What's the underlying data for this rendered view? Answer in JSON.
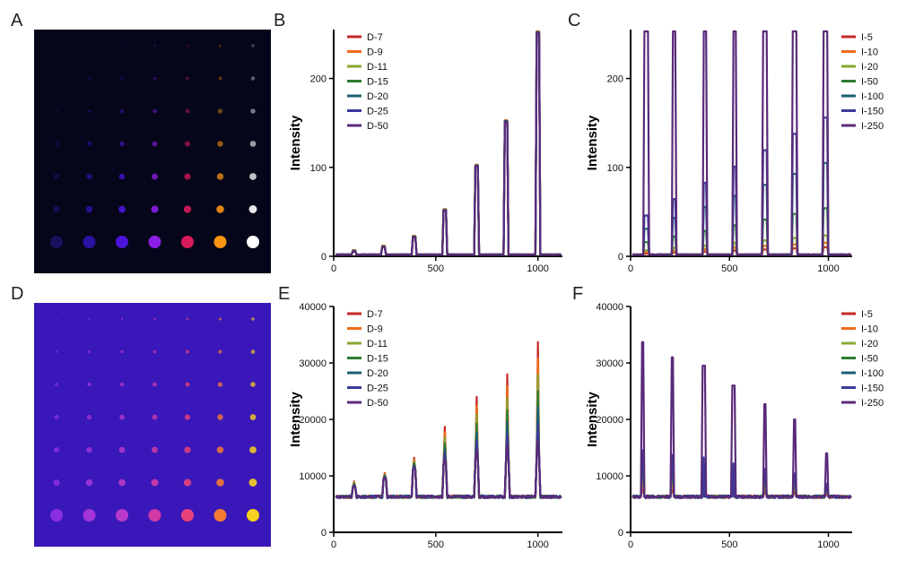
{
  "panel_labels": [
    "A",
    "B",
    "C",
    "D",
    "E",
    "F"
  ],
  "images": [
    {
      "panel": "A",
      "background": "#05061a",
      "grid_colors": [
        "#1a0f5c",
        "#2b11a0",
        "#4b14d8",
        "#8b1fe8",
        "#d81a5a",
        "#f7930f",
        "#ffffff"
      ],
      "row_intensity": [
        0.25,
        0.35,
        0.45,
        0.6,
        0.75,
        0.9,
        1.0
      ]
    },
    {
      "panel": "D",
      "background": "#3a17b8",
      "grid_colors": [
        "#8a2fe0",
        "#a335d8",
        "#b83ac8",
        "#d03aa6",
        "#e8427a",
        "#f57b35",
        "#f7d020"
      ],
      "row_intensity": [
        0.65,
        0.7,
        0.75,
        0.8,
        0.85,
        0.9,
        1.0
      ]
    }
  ],
  "chart_data": [
    {
      "panel": "B",
      "type": "line",
      "ylabel": "Intensity",
      "xlim": [
        0,
        1120
      ],
      "ylim": [
        0,
        255
      ],
      "xticks": [
        0,
        500,
        1000
      ],
      "yticks": [
        0,
        100,
        200
      ],
      "peaks_x": [
        100,
        245,
        395,
        545,
        700,
        845,
        1000
      ],
      "peaks_y": [
        7,
        12,
        23,
        53,
        103,
        153,
        253
      ],
      "baseline": 2,
      "legend": [
        "D-7",
        "D-9",
        "D-11",
        "D-15",
        "D-20",
        "D-25",
        "D-50"
      ],
      "series_colors": [
        "#c62828",
        "#ef6c1a",
        "#8aa832",
        "#2e7d32",
        "#1b5f73",
        "#3a3a9a",
        "#5a2a7a"
      ]
    },
    {
      "panel": "C",
      "type": "line",
      "ylabel": "Intensity",
      "xlim": [
        0,
        1120
      ],
      "ylim": [
        0,
        255
      ],
      "xticks": [
        0,
        500,
        1000
      ],
      "yticks": [
        0,
        100,
        200
      ],
      "peaks_x": [
        80,
        220,
        375,
        525,
        680,
        830,
        985
      ],
      "series_levels": [
        10,
        15,
        23,
        53,
        103,
        153,
        253
      ],
      "baseline": 2,
      "legend": [
        "I-5",
        "I-10",
        "I-20",
        "I-50",
        "I-100",
        "I-150",
        "I-250"
      ],
      "series_colors": [
        "#c62828",
        "#ef6c1a",
        "#8aa832",
        "#2e7d32",
        "#1b5f73",
        "#3a3a9a",
        "#5a2a7a"
      ]
    },
    {
      "panel": "E",
      "type": "line",
      "ylabel": "Intensity",
      "xlim": [
        0,
        1120
      ],
      "ylim": [
        0,
        40000
      ],
      "xticks": [
        0,
        500,
        1000
      ],
      "yticks": [
        0,
        10000,
        20000,
        30000,
        40000
      ],
      "peaks_x": [
        100,
        250,
        395,
        545,
        700,
        850,
        1000
      ],
      "peaks_y": [
        9000,
        10500,
        13200,
        18700,
        24000,
        28000,
        33700
      ],
      "plateau_y": [
        8000,
        9500,
        11000,
        12000,
        13000,
        13200,
        13500
      ],
      "baseline": 6300,
      "legend": [
        "D-7",
        "D-9",
        "D-11",
        "D-15",
        "D-20",
        "D-25",
        "D-50"
      ],
      "series_colors": [
        "#c62828",
        "#ef6c1a",
        "#8aa832",
        "#2e7d32",
        "#1b5f73",
        "#3a3a9a",
        "#5a2a7a"
      ]
    },
    {
      "panel": "F",
      "type": "line",
      "ylabel": "Intensity",
      "xlim": [
        0,
        1120
      ],
      "ylim": [
        0,
        40000
      ],
      "xticks": [
        0,
        500,
        1000
      ],
      "yticks": [
        0,
        10000,
        20000,
        30000,
        40000
      ],
      "peaks_x": [
        60,
        210,
        370,
        520,
        680,
        830,
        990
      ],
      "peaks_y": [
        33700,
        31000,
        29500,
        26000,
        22700,
        20000,
        14000
      ],
      "baseline": 6300,
      "legend": [
        "I-5",
        "I-10",
        "I-20",
        "I-50",
        "I-100",
        "I-150",
        "I-250"
      ],
      "series_colors": [
        "#c62828",
        "#ef6c1a",
        "#8aa832",
        "#2e7d32",
        "#1b5f73",
        "#3a3a9a",
        "#5a2a7a"
      ]
    }
  ]
}
